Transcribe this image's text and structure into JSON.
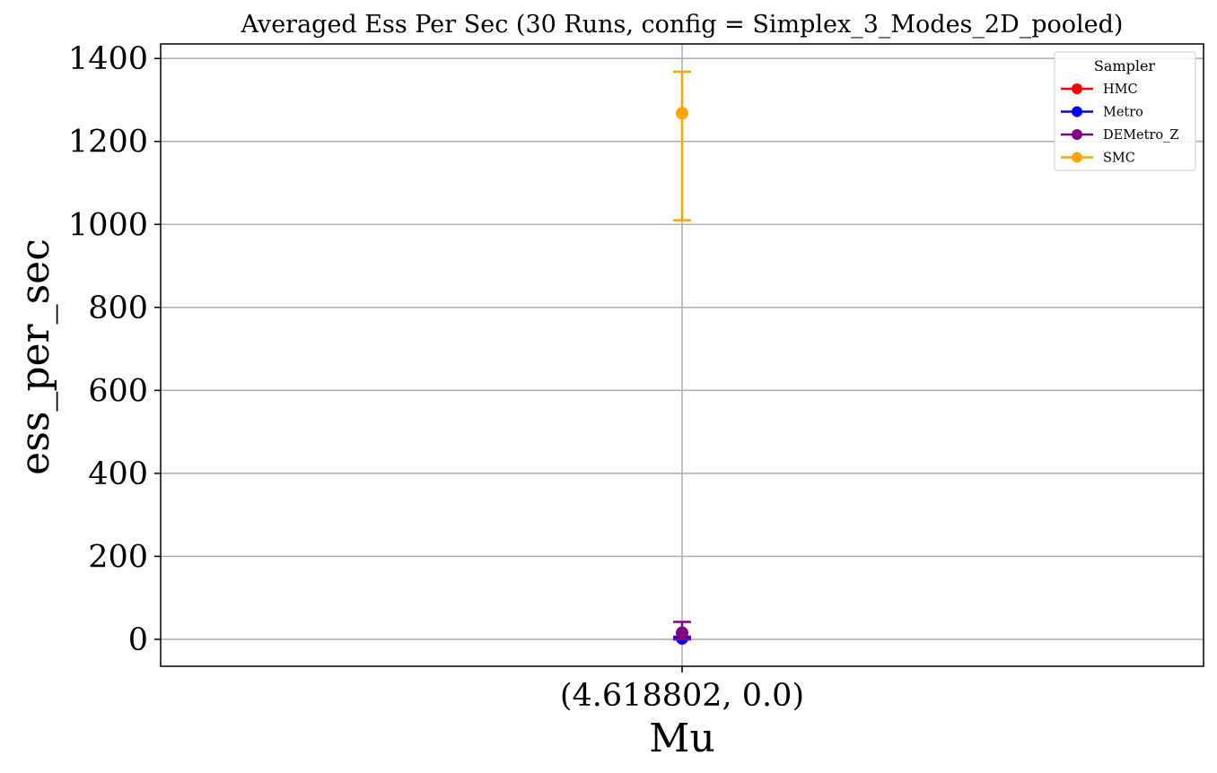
{
  "chart_data": {
    "type": "scatter",
    "title": "Averaged Ess Per Sec (30 Runs, config = Simplex_3_Modes_2D_pooled)",
    "xlabel": "Mu",
    "ylabel": "ess_per_sec",
    "categories": [
      "(4.618802, 0.0)"
    ],
    "ylim": [
      -65,
      1435
    ],
    "yticks": [
      0,
      200,
      400,
      600,
      800,
      1000,
      1200,
      1400
    ],
    "grid": true,
    "legend": {
      "title": "Sampler",
      "placement": "top-right"
    },
    "series": [
      {
        "name": "HMC",
        "color": "#ff0000",
        "values": [
          2
        ],
        "err_low": [
          0
        ],
        "err_high": [
          4
        ]
      },
      {
        "name": "Metro",
        "color": "#0000ff",
        "values": [
          3
        ],
        "err_low": [
          0
        ],
        "err_high": [
          6
        ]
      },
      {
        "name": "DEMetro_Z",
        "color": "#800080",
        "values": [
          16
        ],
        "err_low": [
          0
        ],
        "err_high": [
          42
        ]
      },
      {
        "name": "SMC",
        "color": "#ffa500",
        "values": [
          1268
        ],
        "err_low": [
          1010
        ],
        "err_high": [
          1368
        ]
      }
    ]
  }
}
